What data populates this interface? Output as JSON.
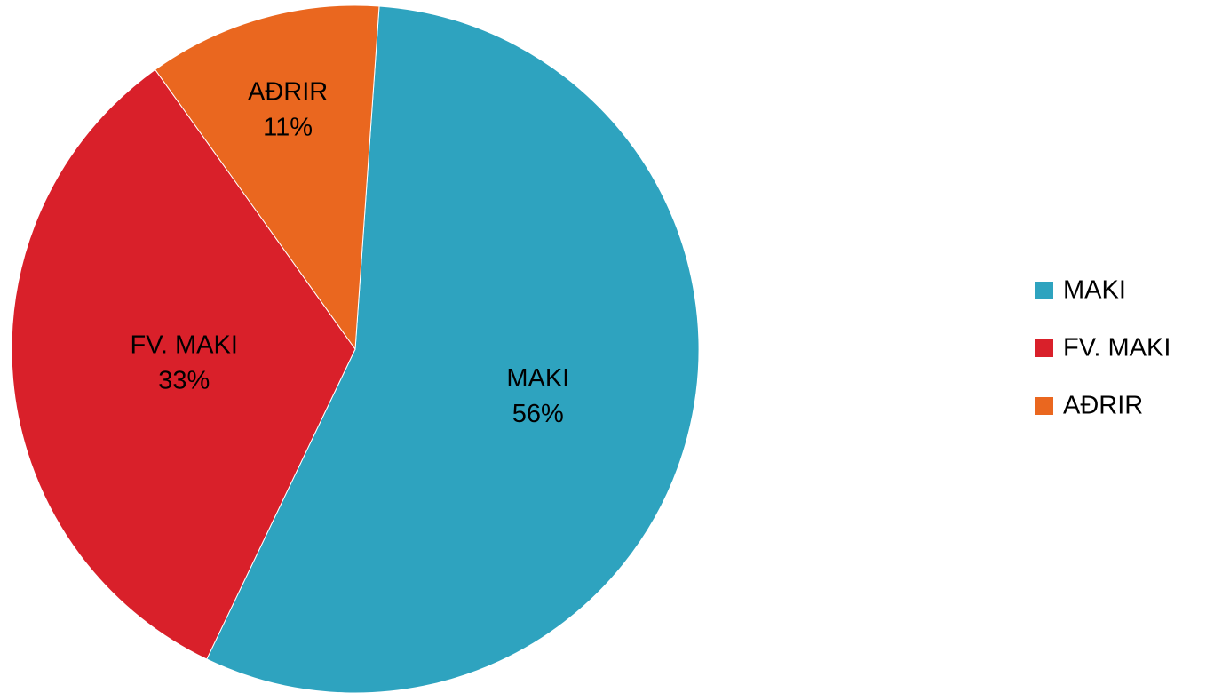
{
  "chart_data": {
    "type": "pie",
    "categories": [
      "MAKI",
      "FV. MAKI",
      "AÐRIR"
    ],
    "values": [
      56,
      33,
      11
    ],
    "value_labels": [
      "56%",
      "33%",
      "11%"
    ],
    "colors": [
      "#2ea3bf",
      "#d9202a",
      "#ea671f"
    ],
    "legend": "right"
  }
}
